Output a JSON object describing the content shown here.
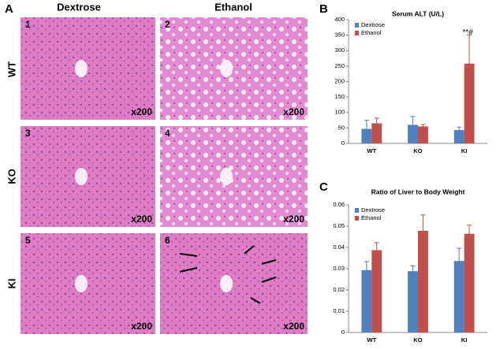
{
  "panel_a": {
    "label": "A",
    "columns": [
      "Dextrose",
      "Ethanol"
    ],
    "rows": [
      "WT",
      "KO",
      "KI"
    ],
    "images": [
      {
        "number": "1",
        "magnification": "x200"
      },
      {
        "number": "2",
        "magnification": "x200"
      },
      {
        "number": "3",
        "magnification": "x200"
      },
      {
        "number": "4",
        "magnification": "x200"
      },
      {
        "number": "5",
        "magnification": "x200"
      },
      {
        "number": "6",
        "magnification": "x200"
      }
    ]
  },
  "chart_data": [
    {
      "type": "bar",
      "panel": "B",
      "title": "Serum ALT (U/L)",
      "categories": [
        "WT",
        "KO",
        "KI"
      ],
      "series": [
        {
          "name": "Dextrose",
          "color": "#4f81bd",
          "values": [
            47,
            60,
            43
          ],
          "errors": [
            28,
            27,
            10
          ]
        },
        {
          "name": "Ethanol",
          "color": "#c0504d",
          "values": [
            65,
            55,
            258
          ],
          "errors": [
            17,
            6,
            93
          ]
        }
      ],
      "annotation": "**#",
      "ylim": [
        0,
        400
      ],
      "yticks": [
        0,
        50,
        100,
        150,
        200,
        250,
        300,
        350,
        400
      ],
      "grid": false,
      "legend": "top-left"
    },
    {
      "type": "bar",
      "panel": "C",
      "title": "Ratio of Liver to Body  Weight",
      "categories": [
        "WT",
        "KO",
        "KI"
      ],
      "series": [
        {
          "name": "Dextrose",
          "color": "#4f81bd",
          "values": [
            0.0293,
            0.0288,
            0.0336
          ],
          "errors": [
            0.004,
            0.0025,
            0.006
          ]
        },
        {
          "name": "Ethanol",
          "color": "#c0504d",
          "values": [
            0.0387,
            0.0478,
            0.0464
          ],
          "errors": [
            0.0035,
            0.0075,
            0.004
          ]
        }
      ],
      "ylim": [
        0,
        0.06
      ],
      "yticks": [
        0,
        0.01,
        0.02,
        0.03,
        0.04,
        0.05,
        0.06
      ],
      "grid": false,
      "legend": "top-left"
    }
  ]
}
